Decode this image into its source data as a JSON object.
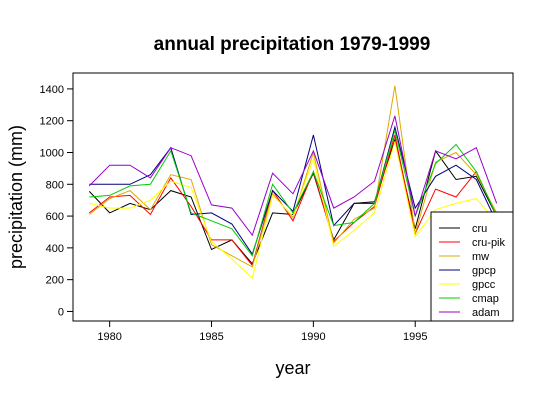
{
  "chart_data": {
    "type": "line",
    "title": "annual precipitation 1979-1999",
    "xlabel": "year",
    "ylabel": "precipitation (mm)",
    "x": [
      1979,
      1980,
      1981,
      1982,
      1983,
      1984,
      1985,
      1986,
      1987,
      1988,
      1989,
      1990,
      1991,
      1992,
      1993,
      1994,
      1995,
      1996,
      1997,
      1998,
      1999
    ],
    "xlim": [
      1978.2,
      1999.8
    ],
    "ylim": [
      -60,
      1500
    ],
    "x_ticks": [
      "1980",
      "1985",
      "1990",
      "1995"
    ],
    "y_ticks": [
      "0",
      "200",
      "400",
      "600",
      "800",
      "1000",
      "1200",
      "1400"
    ],
    "grid": false,
    "legend_position": "bottom-right",
    "series": [
      {
        "name": "cru",
        "color": "#000000",
        "values": [
          755,
          620,
          680,
          640,
          760,
          720,
          390,
          450,
          300,
          620,
          610,
          870,
          450,
          680,
          690,
          1080,
          520,
          1010,
          830,
          850,
          600
        ]
      },
      {
        "name": "cru-pik",
        "color": "#ff0000",
        "values": [
          620,
          720,
          730,
          610,
          840,
          660,
          450,
          450,
          290,
          760,
          570,
          880,
          440,
          560,
          660,
          1110,
          490,
          770,
          720,
          880,
          600
        ]
      },
      {
        "name": "mw",
        "color": "#ddaa00",
        "values": [
          610,
          710,
          760,
          640,
          860,
          830,
          420,
          350,
          280,
          740,
          590,
          1000,
          430,
          580,
          650,
          1420,
          490,
          940,
          1000,
          860,
          620
        ]
      },
      {
        "name": "gpcp",
        "color": "#000080",
        "values": [
          800,
          800,
          800,
          860,
          1030,
          610,
          620,
          550,
          360,
          760,
          630,
          1110,
          540,
          680,
          680,
          1160,
          650,
          850,
          920,
          830,
          560
        ]
      },
      {
        "name": "gpcc",
        "color": "#ffff00",
        "values": [
          680,
          650,
          650,
          700,
          820,
          780,
          440,
          330,
          210,
          730,
          600,
          960,
          410,
          510,
          620,
          1070,
          470,
          640,
          680,
          710,
          560
        ]
      },
      {
        "name": "cmap",
        "color": "#00cc00",
        "values": [
          720,
          730,
          790,
          800,
          1010,
          620,
          570,
          520,
          350,
          800,
          620,
          880,
          540,
          560,
          680,
          1140,
          600,
          930,
          1050,
          880,
          600
        ]
      },
      {
        "name": "adam",
        "color": "#9900cc",
        "values": [
          790,
          920,
          920,
          840,
          1030,
          980,
          670,
          650,
          480,
          870,
          740,
          1010,
          650,
          720,
          820,
          1230,
          600,
          1010,
          960,
          1030,
          680
        ]
      }
    ]
  }
}
